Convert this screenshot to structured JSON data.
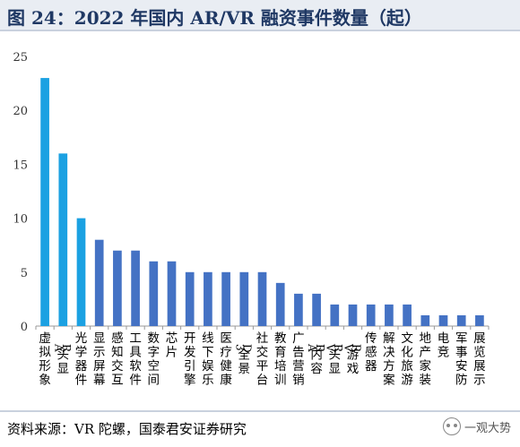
{
  "title": "图 24：2022 年国内 AR/VR 融资事件数量（起）",
  "source": "资料来源：VR 陀螺，国泰君安证券研究",
  "watermark": "一观大势",
  "colors": {
    "highlight": "#1ba1e2",
    "default": "#4472c4",
    "axis": "#999999",
    "grid": "#d9d9d9"
  },
  "chart_data": {
    "type": "bar",
    "categories": [
      "虚拟形象",
      "AR头显",
      "光学器件",
      "显示屏幕",
      "感知交互",
      "工具软件",
      "数字空间",
      "芯片",
      "开发引擎",
      "线下娱乐",
      "医疗健康",
      "3D全景",
      "社交平台",
      "教育培训",
      "广告营销",
      "AR内容",
      "VR头显",
      "VR游戏",
      "传感器",
      "解决方案",
      "文化旅游",
      "地产家装",
      "电竞",
      "军事安防",
      "展览展示"
    ],
    "values": [
      23,
      16,
      10,
      8,
      7,
      7,
      6,
      6,
      5,
      5,
      5,
      5,
      5,
      4,
      3,
      3,
      2,
      2,
      2,
      2,
      2,
      1,
      1,
      1,
      1
    ],
    "highlighted": [
      true,
      true,
      true,
      false,
      false,
      false,
      false,
      false,
      false,
      false,
      false,
      false,
      false,
      false,
      false,
      false,
      false,
      false,
      false,
      false,
      false,
      false,
      false,
      false,
      false
    ],
    "yticks": [
      0,
      5,
      10,
      15,
      20,
      25
    ],
    "ylim": [
      0,
      25
    ],
    "grid": false,
    "legend": "none"
  }
}
